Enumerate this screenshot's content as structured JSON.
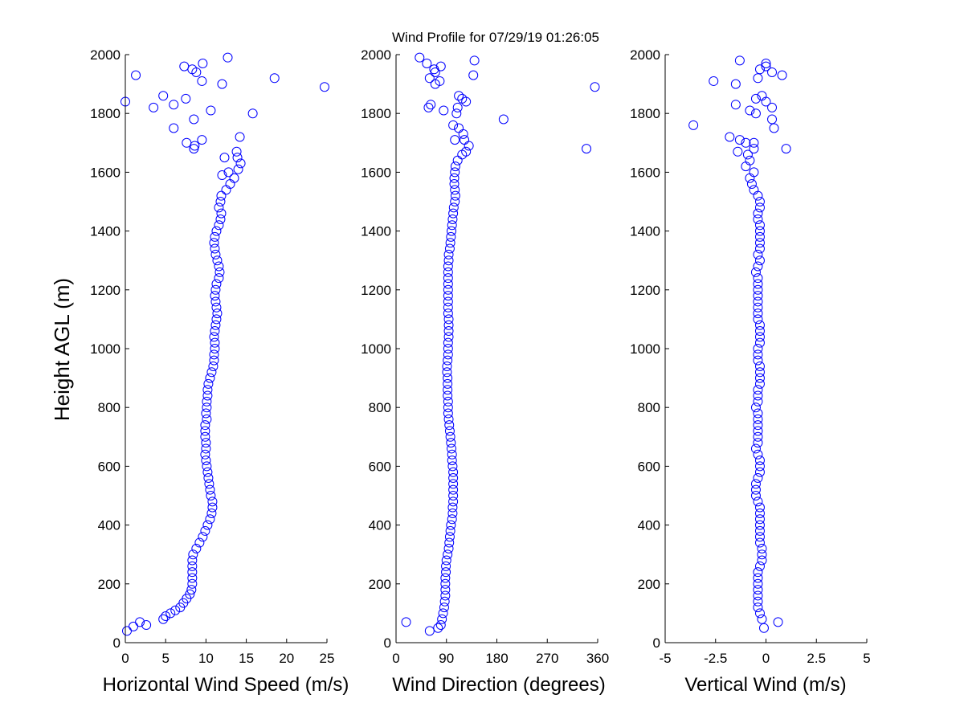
{
  "figure": {
    "title": "Wind Profile for  07/29/19 01:26:05",
    "ylabel": "Height AGL (m)"
  },
  "style": {
    "marker_color": "#0000ff",
    "axis_color": "#000000"
  },
  "chart_data": [
    {
      "type": "scatter",
      "xlabel": "Horizontal Wind Speed (m/s)",
      "xlim": [
        0,
        25
      ],
      "ylim": [
        0,
        2000
      ],
      "xticks": [
        0,
        5,
        10,
        15,
        20,
        25
      ],
      "yticks": [
        0,
        200,
        400,
        600,
        800,
        1000,
        1200,
        1400,
        1600,
        1800,
        2000
      ],
      "grid": false,
      "points": [
        [
          0.2,
          40
        ],
        [
          1.0,
          55
        ],
        [
          1.8,
          70
        ],
        [
          2.6,
          60
        ],
        [
          4.7,
          80
        ],
        [
          5.0,
          90
        ],
        [
          5.6,
          100
        ],
        [
          6.2,
          110
        ],
        [
          6.8,
          120
        ],
        [
          7.2,
          135
        ],
        [
          7.6,
          150
        ],
        [
          8.0,
          165
        ],
        [
          8.2,
          180
        ],
        [
          8.3,
          200
        ],
        [
          8.3,
          220
        ],
        [
          8.3,
          240
        ],
        [
          8.3,
          260
        ],
        [
          8.3,
          280
        ],
        [
          8.4,
          300
        ],
        [
          8.8,
          320
        ],
        [
          9.2,
          340
        ],
        [
          9.6,
          360
        ],
        [
          9.9,
          380
        ],
        [
          10.2,
          400
        ],
        [
          10.5,
          420
        ],
        [
          10.7,
          440
        ],
        [
          10.8,
          460
        ],
        [
          10.8,
          480
        ],
        [
          10.6,
          500
        ],
        [
          10.5,
          520
        ],
        [
          10.4,
          540
        ],
        [
          10.3,
          560
        ],
        [
          10.2,
          580
        ],
        [
          10.1,
          600
        ],
        [
          10.0,
          620
        ],
        [
          9.9,
          640
        ],
        [
          10.0,
          660
        ],
        [
          10.0,
          680
        ],
        [
          9.9,
          700
        ],
        [
          9.9,
          720
        ],
        [
          9.9,
          740
        ],
        [
          10.1,
          760
        ],
        [
          10.0,
          780
        ],
        [
          10.1,
          800
        ],
        [
          10.1,
          820
        ],
        [
          10.2,
          840
        ],
        [
          10.2,
          860
        ],
        [
          10.3,
          880
        ],
        [
          10.5,
          900
        ],
        [
          10.7,
          920
        ],
        [
          10.9,
          940
        ],
        [
          11.0,
          960
        ],
        [
          11.0,
          980
        ],
        [
          11.1,
          1000
        ],
        [
          11.1,
          1020
        ],
        [
          11.0,
          1040
        ],
        [
          11.1,
          1060
        ],
        [
          11.2,
          1080
        ],
        [
          11.3,
          1100
        ],
        [
          11.4,
          1120
        ],
        [
          11.3,
          1140
        ],
        [
          11.2,
          1160
        ],
        [
          11.1,
          1180
        ],
        [
          11.2,
          1200
        ],
        [
          11.3,
          1220
        ],
        [
          11.6,
          1240
        ],
        [
          11.7,
          1260
        ],
        [
          11.6,
          1280
        ],
        [
          11.4,
          1300
        ],
        [
          11.2,
          1320
        ],
        [
          11.1,
          1340
        ],
        [
          11.0,
          1360
        ],
        [
          11.1,
          1380
        ],
        [
          11.3,
          1400
        ],
        [
          11.6,
          1420
        ],
        [
          11.8,
          1440
        ],
        [
          11.9,
          1460
        ],
        [
          11.6,
          1480
        ],
        [
          11.8,
          1500
        ],
        [
          11.9,
          1520
        ],
        [
          12.5,
          1540
        ],
        [
          13.0,
          1560
        ],
        [
          13.5,
          1580
        ],
        [
          14.0,
          1610
        ],
        [
          14.3,
          1630
        ],
        [
          13.9,
          1650
        ],
        [
          13.8,
          1670
        ],
        [
          12.8,
          1600
        ],
        [
          12.0,
          1590
        ],
        [
          12.3,
          1650
        ],
        [
          14.2,
          1720
        ],
        [
          9.5,
          1710
        ],
        [
          8.5,
          1680
        ],
        [
          8.6,
          1690
        ],
        [
          7.6,
          1700
        ],
        [
          6.0,
          1750
        ],
        [
          8.5,
          1780
        ],
        [
          10.6,
          1810
        ],
        [
          15.8,
          1800
        ],
        [
          3.5,
          1820
        ],
        [
          6.0,
          1830
        ],
        [
          7.5,
          1850
        ],
        [
          4.7,
          1860
        ],
        [
          0.0,
          1840
        ],
        [
          12.0,
          1900
        ],
        [
          24.7,
          1890
        ],
        [
          18.5,
          1920
        ],
        [
          9.5,
          1910
        ],
        [
          1.3,
          1930
        ],
        [
          8.8,
          1940
        ],
        [
          8.3,
          1950
        ],
        [
          7.3,
          1960
        ],
        [
          9.6,
          1970
        ],
        [
          12.7,
          1990
        ]
      ]
    },
    {
      "type": "scatter",
      "xlabel": "Wind Direction (degrees)",
      "xlim": [
        0,
        360
      ],
      "ylim": [
        0,
        2000
      ],
      "xticks": [
        0,
        90,
        180,
        270,
        360
      ],
      "yticks": [
        0,
        200,
        400,
        600,
        800,
        1000,
        1200,
        1400,
        1600,
        1800,
        2000
      ],
      "grid": false,
      "points": [
        [
          18,
          70
        ],
        [
          60,
          40
        ],
        [
          75,
          50
        ],
        [
          80,
          60
        ],
        [
          82,
          80
        ],
        [
          84,
          100
        ],
        [
          86,
          120
        ],
        [
          87,
          140
        ],
        [
          88,
          160
        ],
        [
          88,
          180
        ],
        [
          88,
          200
        ],
        [
          88,
          220
        ],
        [
          89,
          240
        ],
        [
          89,
          260
        ],
        [
          90,
          280
        ],
        [
          92,
          300
        ],
        [
          94,
          320
        ],
        [
          95,
          340
        ],
        [
          96,
          360
        ],
        [
          97,
          380
        ],
        [
          98,
          400
        ],
        [
          100,
          420
        ],
        [
          101,
          440
        ],
        [
          101,
          460
        ],
        [
          102,
          480
        ],
        [
          102,
          500
        ],
        [
          102,
          520
        ],
        [
          102,
          540
        ],
        [
          102,
          560
        ],
        [
          102,
          580
        ],
        [
          101,
          600
        ],
        [
          100,
          620
        ],
        [
          100,
          640
        ],
        [
          99,
          660
        ],
        [
          98,
          680
        ],
        [
          97,
          700
        ],
        [
          96,
          720
        ],
        [
          95,
          740
        ],
        [
          94,
          760
        ],
        [
          93,
          780
        ],
        [
          93,
          800
        ],
        [
          93,
          820
        ],
        [
          92,
          840
        ],
        [
          92,
          860
        ],
        [
          92,
          880
        ],
        [
          92,
          900
        ],
        [
          91,
          920
        ],
        [
          91,
          940
        ],
        [
          92,
          960
        ],
        [
          93,
          980
        ],
        [
          93,
          1000
        ],
        [
          93,
          1020
        ],
        [
          94,
          1040
        ],
        [
          94,
          1060
        ],
        [
          94,
          1080
        ],
        [
          94,
          1100
        ],
        [
          93,
          1120
        ],
        [
          93,
          1140
        ],
        [
          93,
          1160
        ],
        [
          93,
          1180
        ],
        [
          93,
          1200
        ],
        [
          93,
          1220
        ],
        [
          93,
          1240
        ],
        [
          93,
          1260
        ],
        [
          93,
          1280
        ],
        [
          94,
          1300
        ],
        [
          94,
          1320
        ],
        [
          96,
          1340
        ],
        [
          97,
          1360
        ],
        [
          98,
          1380
        ],
        [
          99,
          1400
        ],
        [
          100,
          1420
        ],
        [
          101,
          1440
        ],
        [
          102,
          1460
        ],
        [
          103,
          1480
        ],
        [
          105,
          1500
        ],
        [
          106,
          1520
        ],
        [
          105,
          1540
        ],
        [
          104,
          1560
        ],
        [
          104,
          1580
        ],
        [
          105,
          1600
        ],
        [
          106,
          1620
        ],
        [
          110,
          1640
        ],
        [
          118,
          1660
        ],
        [
          125,
          1670
        ],
        [
          130,
          1690
        ],
        [
          122,
          1710
        ],
        [
          105,
          1710
        ],
        [
          120,
          1730
        ],
        [
          112,
          1750
        ],
        [
          102,
          1760
        ],
        [
          108,
          1800
        ],
        [
          192,
          1780
        ],
        [
          340,
          1680
        ],
        [
          355,
          1890
        ],
        [
          110,
          1820
        ],
        [
          85,
          1810
        ],
        [
          62,
          1830
        ],
        [
          58,
          1820
        ],
        [
          118,
          1850
        ],
        [
          125,
          1840
        ],
        [
          112,
          1860
        ],
        [
          70,
          1900
        ],
        [
          60,
          1920
        ],
        [
          70,
          1940
        ],
        [
          78,
          1910
        ],
        [
          138,
          1930
        ],
        [
          140,
          1980
        ],
        [
          80,
          1960
        ],
        [
          55,
          1970
        ],
        [
          42,
          1990
        ],
        [
          68,
          1950
        ]
      ]
    },
    {
      "type": "scatter",
      "xlabel": "Vertical Wind (m/s)",
      "xlim": [
        -5,
        5
      ],
      "xticks": [
        -5,
        -2.5,
        0,
        2.5,
        5
      ],
      "ylim": [
        0,
        2000
      ],
      "yticks": [
        0,
        200,
        400,
        600,
        800,
        1000,
        1200,
        1400,
        1600,
        1800,
        2000
      ],
      "grid": false,
      "points": [
        [
          0.6,
          70
        ],
        [
          -0.1,
          50
        ],
        [
          -0.2,
          80
        ],
        [
          -0.3,
          100
        ],
        [
          -0.4,
          120
        ],
        [
          -0.4,
          140
        ],
        [
          -0.4,
          160
        ],
        [
          -0.4,
          180
        ],
        [
          -0.4,
          200
        ],
        [
          -0.4,
          220
        ],
        [
          -0.4,
          240
        ],
        [
          -0.3,
          260
        ],
        [
          -0.2,
          280
        ],
        [
          -0.2,
          300
        ],
        [
          -0.2,
          320
        ],
        [
          -0.3,
          340
        ],
        [
          -0.3,
          360
        ],
        [
          -0.3,
          380
        ],
        [
          -0.3,
          400
        ],
        [
          -0.3,
          420
        ],
        [
          -0.3,
          440
        ],
        [
          -0.3,
          460
        ],
        [
          -0.4,
          480
        ],
        [
          -0.5,
          500
        ],
        [
          -0.5,
          520
        ],
        [
          -0.5,
          540
        ],
        [
          -0.4,
          560
        ],
        [
          -0.3,
          580
        ],
        [
          -0.3,
          600
        ],
        [
          -0.3,
          620
        ],
        [
          -0.4,
          640
        ],
        [
          -0.5,
          660
        ],
        [
          -0.4,
          680
        ],
        [
          -0.4,
          700
        ],
        [
          -0.4,
          720
        ],
        [
          -0.4,
          740
        ],
        [
          -0.4,
          760
        ],
        [
          -0.4,
          780
        ],
        [
          -0.5,
          800
        ],
        [
          -0.4,
          820
        ],
        [
          -0.4,
          840
        ],
        [
          -0.4,
          860
        ],
        [
          -0.3,
          880
        ],
        [
          -0.3,
          900
        ],
        [
          -0.3,
          920
        ],
        [
          -0.3,
          940
        ],
        [
          -0.4,
          960
        ],
        [
          -0.4,
          980
        ],
        [
          -0.4,
          1000
        ],
        [
          -0.3,
          1020
        ],
        [
          -0.3,
          1040
        ],
        [
          -0.3,
          1060
        ],
        [
          -0.3,
          1080
        ],
        [
          -0.4,
          1100
        ],
        [
          -0.4,
          1120
        ],
        [
          -0.4,
          1140
        ],
        [
          -0.4,
          1160
        ],
        [
          -0.4,
          1180
        ],
        [
          -0.4,
          1200
        ],
        [
          -0.4,
          1220
        ],
        [
          -0.4,
          1240
        ],
        [
          -0.5,
          1260
        ],
        [
          -0.4,
          1280
        ],
        [
          -0.3,
          1300
        ],
        [
          -0.4,
          1320
        ],
        [
          -0.3,
          1340
        ],
        [
          -0.3,
          1360
        ],
        [
          -0.3,
          1380
        ],
        [
          -0.3,
          1400
        ],
        [
          -0.3,
          1420
        ],
        [
          -0.4,
          1440
        ],
        [
          -0.4,
          1460
        ],
        [
          -0.3,
          1480
        ],
        [
          -0.3,
          1500
        ],
        [
          -0.4,
          1520
        ],
        [
          -0.6,
          1540
        ],
        [
          -0.7,
          1560
        ],
        [
          -0.8,
          1580
        ],
        [
          -0.6,
          1600
        ],
        [
          -1.0,
          1620
        ],
        [
          -0.8,
          1640
        ],
        [
          -0.9,
          1660
        ],
        [
          -0.6,
          1680
        ],
        [
          -1.4,
          1670
        ],
        [
          -1.0,
          1700
        ],
        [
          -1.8,
          1720
        ],
        [
          -1.3,
          1710
        ],
        [
          -0.6,
          1700
        ],
        [
          -3.6,
          1760
        ],
        [
          0.4,
          1750
        ],
        [
          0.3,
          1780
        ],
        [
          -0.5,
          1800
        ],
        [
          -0.8,
          1810
        ],
        [
          0.3,
          1820
        ],
        [
          0.0,
          1840
        ],
        [
          -1.5,
          1830
        ],
        [
          -0.5,
          1850
        ],
        [
          -0.2,
          1860
        ],
        [
          -1.5,
          1900
        ],
        [
          -2.6,
          1910
        ],
        [
          -0.4,
          1920
        ],
        [
          0.8,
          1930
        ],
        [
          0.3,
          1940
        ],
        [
          -0.3,
          1950
        ],
        [
          1.0,
          1680
        ],
        [
          0.0,
          1960
        ],
        [
          0.0,
          1970
        ],
        [
          -1.3,
          1980
        ]
      ]
    }
  ]
}
